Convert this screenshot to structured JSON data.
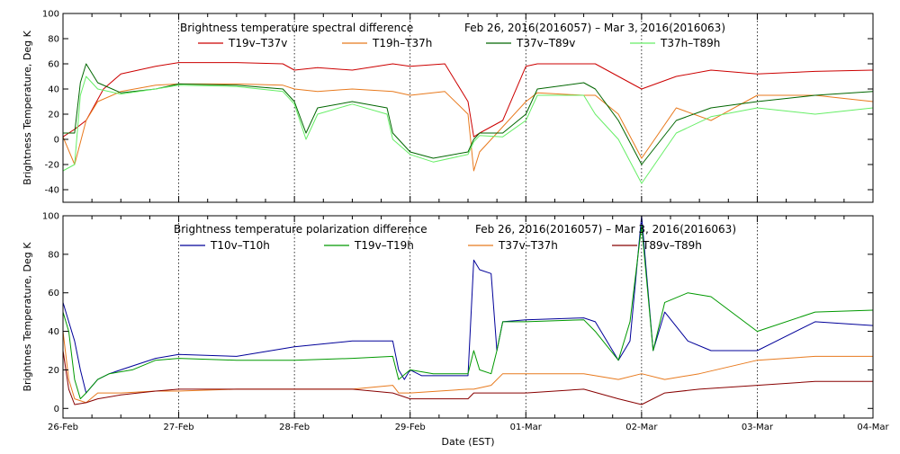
{
  "chart_data": [
    {
      "type": "line",
      "title": "Brightness temperature spectral difference",
      "date_range": "Feb 26, 2016(2016057) – Mar  3, 2016(2016063)",
      "ylabel": "Brightness Temperature, Deg K",
      "xlabel": "",
      "ylim": [
        -50,
        100
      ],
      "y_ticks": [
        "-40",
        "-20",
        "0",
        "20",
        "40",
        "60",
        "80",
        "100"
      ],
      "x_tick_labels": [],
      "grid": true,
      "legend_placement": "top-center",
      "series": [
        {
          "name": "T19v–T37v",
          "color": "#cc0000",
          "x": [
            0,
            0.05,
            0.1,
            0.2,
            0.35,
            0.5,
            0.8,
            1.0,
            1.5,
            1.9,
            2.0,
            2.2,
            2.5,
            2.85,
            3.0,
            3.3,
            3.5,
            3.55,
            3.6,
            3.8,
            4.0,
            4.1,
            4.5,
            4.6,
            4.8,
            5.0,
            5.3,
            5.6,
            6.0,
            6.5,
            7.0
          ],
          "values": [
            2,
            5,
            8,
            15,
            40,
            52,
            58,
            61,
            61,
            60,
            55,
            57,
            55,
            60,
            58,
            60,
            30,
            2,
            5,
            15,
            58,
            60,
            60,
            60,
            50,
            40,
            50,
            55,
            52,
            54,
            55
          ]
        },
        {
          "name": "T19h–T37h",
          "color": "#e87a1e",
          "x": [
            0,
            0.1,
            0.2,
            0.3,
            0.5,
            0.8,
            1.0,
            1.5,
            1.9,
            2.0,
            2.2,
            2.5,
            2.85,
            3.0,
            3.3,
            3.5,
            3.55,
            3.6,
            3.8,
            4.0,
            4.1,
            4.5,
            4.6,
            4.8,
            5.0,
            5.3,
            5.6,
            6.0,
            6.5,
            7.0
          ],
          "values": [
            2,
            -20,
            15,
            30,
            38,
            43,
            44,
            44,
            43,
            40,
            38,
            40,
            38,
            35,
            38,
            20,
            -25,
            -10,
            10,
            30,
            37,
            35,
            35,
            20,
            -15,
            25,
            15,
            35,
            35,
            30
          ]
        },
        {
          "name": "T37v–T89v",
          "color": "#006600",
          "x": [
            0,
            0.1,
            0.15,
            0.2,
            0.3,
            0.5,
            0.8,
            1.0,
            1.5,
            1.9,
            2.0,
            2.1,
            2.2,
            2.5,
            2.8,
            2.85,
            3.0,
            3.2,
            3.5,
            3.55,
            3.6,
            3.8,
            4.0,
            4.1,
            4.5,
            4.6,
            4.8,
            5.0,
            5.3,
            5.6,
            6.0,
            6.5,
            7.0
          ],
          "values": [
            5,
            5,
            45,
            60,
            45,
            37,
            40,
            44,
            43,
            40,
            30,
            5,
            25,
            30,
            25,
            5,
            -10,
            -15,
            -10,
            0,
            5,
            5,
            20,
            40,
            45,
            40,
            15,
            -20,
            15,
            25,
            30,
            35,
            38
          ]
        },
        {
          "name": "T37h–T89h",
          "color": "#66ee66",
          "x": [
            0,
            0.1,
            0.15,
            0.2,
            0.3,
            0.5,
            0.8,
            1.0,
            1.5,
            1.9,
            2.0,
            2.1,
            2.2,
            2.5,
            2.8,
            2.85,
            3.0,
            3.2,
            3.5,
            3.55,
            3.6,
            3.8,
            4.0,
            4.1,
            4.5,
            4.6,
            4.8,
            5.0,
            5.3,
            5.6,
            6.0,
            6.5,
            7.0
          ],
          "values": [
            -25,
            -20,
            35,
            50,
            40,
            36,
            40,
            43,
            42,
            38,
            28,
            0,
            20,
            28,
            20,
            0,
            -12,
            -18,
            -12,
            -2,
            3,
            2,
            15,
            35,
            35,
            20,
            0,
            -35,
            5,
            18,
            25,
            20,
            25
          ]
        }
      ]
    },
    {
      "type": "line",
      "title": "Brightness temperature polarization difference",
      "date_range": "Feb 26, 2016(2016057) – Mar  3, 2016(2016063)",
      "ylabel": "Brightnes Temperature, Deg K",
      "xlabel": "Date (EST)",
      "ylim": [
        -5,
        100
      ],
      "y_ticks": [
        "0",
        "20",
        "40",
        "60",
        "80",
        "100"
      ],
      "x_tick_labels": [
        "26-Feb",
        "27-Feb",
        "28-Feb",
        "29-Feb",
        "01-Mar",
        "02-Mar",
        "03-Mar",
        "04-Mar"
      ],
      "grid": true,
      "legend_placement": "top-center",
      "series": [
        {
          "name": "T10v–T10h",
          "color": "#000099",
          "x": [
            0,
            0.05,
            0.1,
            0.15,
            0.2,
            0.3,
            0.4,
            0.6,
            0.8,
            1.0,
            1.5,
            2.0,
            2.5,
            2.85,
            2.9,
            2.95,
            3.0,
            3.1,
            3.2,
            3.5,
            3.55,
            3.6,
            3.7,
            3.75,
            3.8,
            4.0,
            4.5,
            4.6,
            4.8,
            4.9,
            5.0,
            5.1,
            5.2,
            5.4,
            5.6,
            6.0,
            6.5,
            7.0
          ],
          "values": [
            55,
            45,
            35,
            20,
            8,
            15,
            18,
            22,
            26,
            28,
            27,
            32,
            35,
            35,
            20,
            15,
            20,
            17,
            17,
            17,
            77,
            72,
            70,
            30,
            45,
            46,
            47,
            45,
            25,
            35,
            100,
            30,
            50,
            35,
            30,
            30,
            45,
            43
          ]
        },
        {
          "name": "T19v–T19h",
          "color": "#009900",
          "x": [
            0,
            0.05,
            0.1,
            0.15,
            0.2,
            0.3,
            0.4,
            0.6,
            0.8,
            1.0,
            1.5,
            2.0,
            2.5,
            2.85,
            2.9,
            3.0,
            3.2,
            3.5,
            3.55,
            3.6,
            3.7,
            3.75,
            3.8,
            4.0,
            4.5,
            4.6,
            4.8,
            4.9,
            5.0,
            5.1,
            5.2,
            5.4,
            5.6,
            6.0,
            6.5,
            7.0
          ],
          "values": [
            50,
            40,
            15,
            5,
            8,
            15,
            18,
            20,
            25,
            26,
            25,
            25,
            26,
            27,
            15,
            20,
            18,
            18,
            30,
            20,
            18,
            30,
            45,
            45,
            46,
            40,
            25,
            45,
            95,
            30,
            55,
            60,
            58,
            40,
            50,
            51
          ]
        },
        {
          "name": "T37v–T37h",
          "color": "#e87a1e",
          "x": [
            0,
            0.05,
            0.1,
            0.2,
            0.3,
            0.5,
            0.8,
            1.0,
            1.5,
            2.0,
            2.5,
            2.85,
            2.9,
            3.0,
            3.5,
            3.55,
            3.7,
            3.8,
            4.0,
            4.5,
            4.8,
            5.0,
            5.2,
            5.5,
            6.0,
            6.5,
            7.0
          ],
          "values": [
            40,
            15,
            5,
            3,
            8,
            8,
            9,
            9,
            10,
            10,
            10,
            12,
            8,
            8,
            10,
            10,
            12,
            18,
            18,
            18,
            15,
            18,
            15,
            18,
            25,
            27,
            27
          ]
        },
        {
          "name": "T89v–T89h",
          "color": "#880000",
          "x": [
            0,
            0.05,
            0.1,
            0.2,
            0.3,
            0.5,
            0.8,
            1.0,
            1.5,
            2.0,
            2.5,
            2.85,
            3.0,
            3.5,
            3.55,
            3.7,
            4.0,
            4.5,
            4.8,
            5.0,
            5.2,
            5.5,
            6.0,
            6.5,
            7.0
          ],
          "values": [
            30,
            10,
            2,
            3,
            5,
            7,
            9,
            10,
            10,
            10,
            10,
            8,
            5,
            5,
            8,
            8,
            8,
            10,
            5,
            2,
            8,
            10,
            12,
            14,
            14
          ]
        }
      ]
    }
  ]
}
